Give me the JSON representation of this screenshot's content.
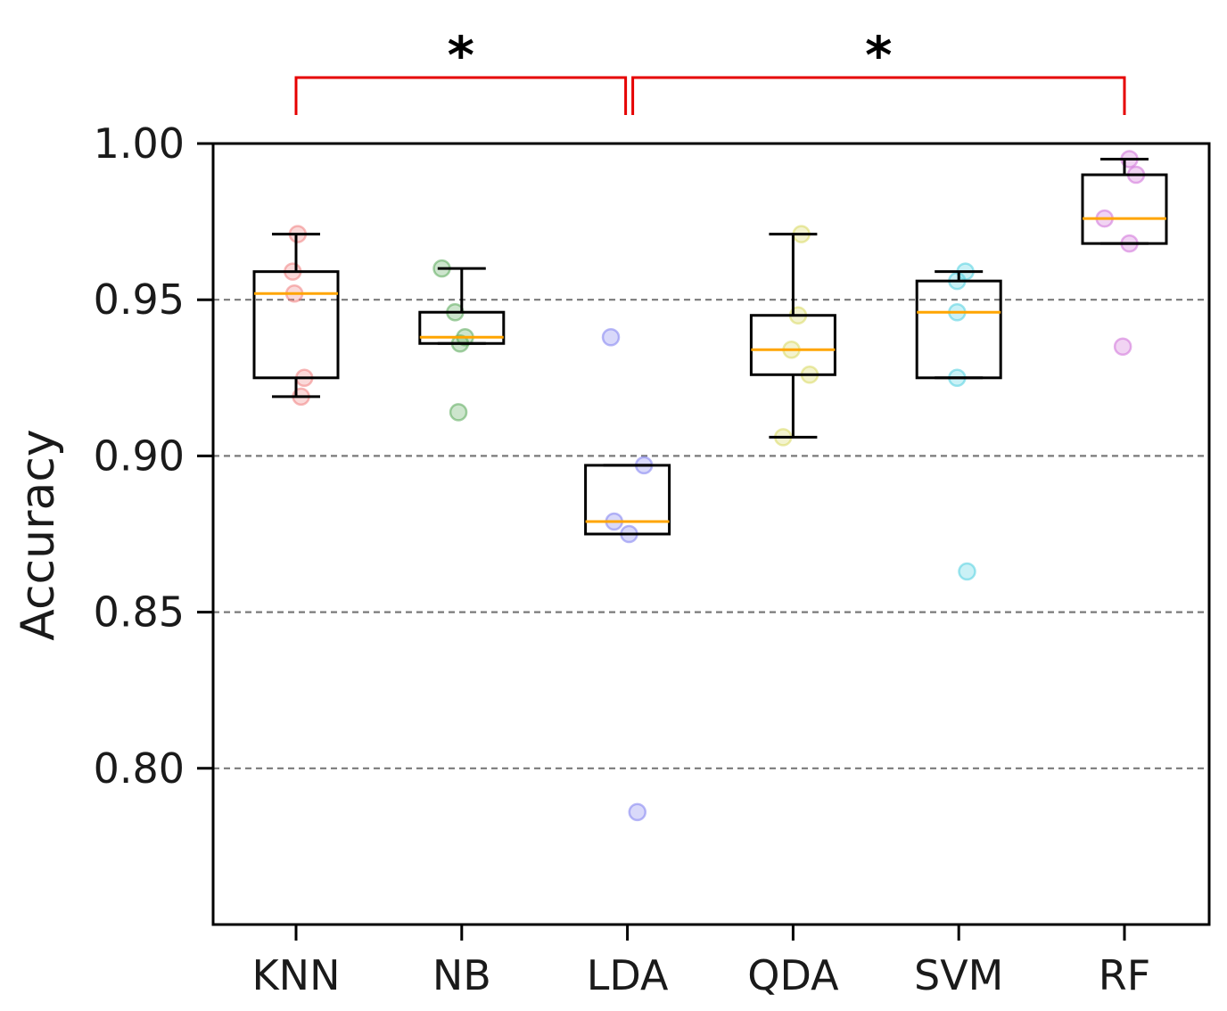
{
  "chart_data": {
    "type": "box",
    "ylabel": "Accuracy",
    "xlabel": "",
    "title": "",
    "ylim": [
      0.75,
      1.0
    ],
    "yticks": [
      0.8,
      0.85,
      0.9,
      0.95,
      1.0
    ],
    "ytick_labels": [
      "0.80",
      "0.85",
      "0.90",
      "0.95",
      "1.00"
    ],
    "grid": "y-dashed",
    "categories": [
      "KNN",
      "NB",
      "LDA",
      "QDA",
      "SVM",
      "RF"
    ],
    "colors": {
      "KNN": "#f08080",
      "NB": "#5aaa5a",
      "LDA": "#8080f0",
      "QDA": "#d8d860",
      "SVM": "#50d0e0",
      "RF": "#d070d8",
      "median": "#ffa500",
      "bracket": "#e60000"
    },
    "boxes": [
      {
        "name": "KNN",
        "whisker_low": 0.919,
        "q1": 0.925,
        "median": 0.952,
        "q3": 0.959,
        "whisker_high": 0.971
      },
      {
        "name": "NB",
        "whisker_low": 0.936,
        "q1": 0.936,
        "median": 0.938,
        "q3": 0.946,
        "whisker_high": 0.96
      },
      {
        "name": "LDA",
        "whisker_low": 0.875,
        "q1": 0.875,
        "median": 0.879,
        "q3": 0.897,
        "whisker_high": 0.897
      },
      {
        "name": "QDA",
        "whisker_low": 0.906,
        "q1": 0.926,
        "median": 0.934,
        "q3": 0.945,
        "whisker_high": 0.971
      },
      {
        "name": "SVM",
        "whisker_low": 0.925,
        "q1": 0.925,
        "median": 0.946,
        "q3": 0.956,
        "whisker_high": 0.959
      },
      {
        "name": "RF",
        "whisker_low": 0.968,
        "q1": 0.968,
        "median": 0.976,
        "q3": 0.99,
        "whisker_high": 0.995
      }
    ],
    "points": [
      {
        "group": "KNN",
        "offset": 0.01,
        "y": 0.971
      },
      {
        "group": "KNN",
        "offset": -0.02,
        "y": 0.959
      },
      {
        "group": "KNN",
        "offset": -0.01,
        "y": 0.952
      },
      {
        "group": "KNN",
        "offset": 0.05,
        "y": 0.925
      },
      {
        "group": "KNN",
        "offset": 0.03,
        "y": 0.919
      },
      {
        "group": "NB",
        "offset": -0.12,
        "y": 0.96
      },
      {
        "group": "NB",
        "offset": -0.04,
        "y": 0.946
      },
      {
        "group": "NB",
        "offset": 0.02,
        "y": 0.938
      },
      {
        "group": "NB",
        "offset": -0.01,
        "y": 0.936
      },
      {
        "group": "NB",
        "offset": -0.02,
        "y": 0.914
      },
      {
        "group": "LDA",
        "offset": -0.1,
        "y": 0.938
      },
      {
        "group": "LDA",
        "offset": 0.1,
        "y": 0.897
      },
      {
        "group": "LDA",
        "offset": -0.08,
        "y": 0.879
      },
      {
        "group": "LDA",
        "offset": 0.01,
        "y": 0.875
      },
      {
        "group": "LDA",
        "offset": 0.06,
        "y": 0.786
      },
      {
        "group": "QDA",
        "offset": 0.05,
        "y": 0.971
      },
      {
        "group": "QDA",
        "offset": 0.03,
        "y": 0.945
      },
      {
        "group": "QDA",
        "offset": -0.01,
        "y": 0.934
      },
      {
        "group": "QDA",
        "offset": 0.1,
        "y": 0.926
      },
      {
        "group": "QDA",
        "offset": -0.06,
        "y": 0.906
      },
      {
        "group": "SVM",
        "offset": 0.04,
        "y": 0.959
      },
      {
        "group": "SVM",
        "offset": -0.01,
        "y": 0.956
      },
      {
        "group": "SVM",
        "offset": -0.01,
        "y": 0.946
      },
      {
        "group": "SVM",
        "offset": -0.01,
        "y": 0.925
      },
      {
        "group": "SVM",
        "offset": 0.05,
        "y": 0.863
      },
      {
        "group": "RF",
        "offset": 0.03,
        "y": 0.995
      },
      {
        "group": "RF",
        "offset": 0.07,
        "y": 0.99
      },
      {
        "group": "RF",
        "offset": -0.12,
        "y": 0.976
      },
      {
        "group": "RF",
        "offset": 0.03,
        "y": 0.968
      },
      {
        "group": "RF",
        "offset": -0.01,
        "y": 0.935
      }
    ],
    "annotations": [
      {
        "type": "significance",
        "from": "KNN",
        "to": "LDA",
        "label": "*"
      },
      {
        "type": "significance",
        "from": "LDA",
        "to": "RF",
        "label": "*"
      }
    ]
  }
}
